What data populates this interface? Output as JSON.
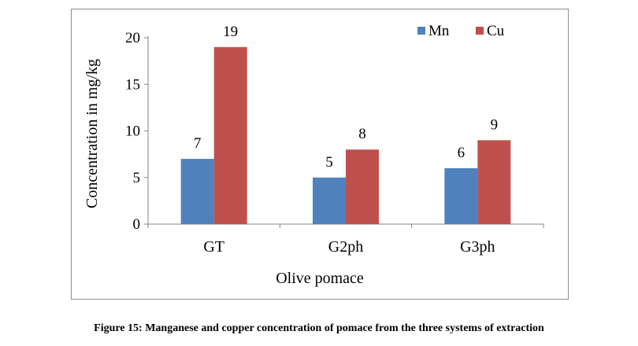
{
  "caption": "Figure 15: Manganese and copper concentration of pomace from the three systems of extraction",
  "chart_data": {
    "type": "bar",
    "categories": [
      "GT",
      "G2ph",
      "G3ph"
    ],
    "series": [
      {
        "name": "Mn",
        "values": [
          7,
          5,
          6
        ],
        "color": "#4f81bd"
      },
      {
        "name": "Cu",
        "values": [
          19,
          8,
          9
        ],
        "color": "#c0504d"
      }
    ],
    "title": "",
    "xlabel": "Olive pomace",
    "ylabel": "Concentration in mg/kg",
    "ylim": [
      0,
      20
    ],
    "yticks": [
      0,
      5,
      10,
      15,
      20
    ],
    "grid": false,
    "legend_position": "top-right",
    "data_labels": true
  }
}
